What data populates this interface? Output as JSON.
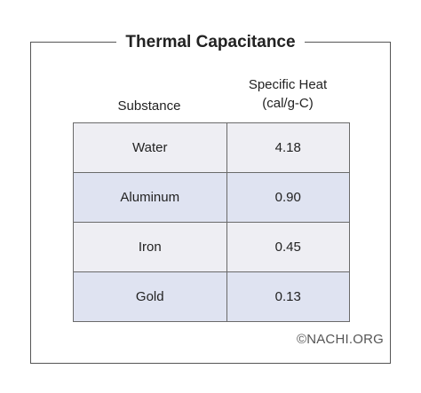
{
  "title": "Thermal Capacitance",
  "headers": {
    "substance": "Substance",
    "specific_heat_line1": "Specific Heat",
    "specific_heat_line2": "(cal/g-C)"
  },
  "rows": [
    {
      "substance": "Water",
      "value": "4.18"
    },
    {
      "substance": "Aluminum",
      "value": "0.90"
    },
    {
      "substance": "Iron",
      "value": "0.45"
    },
    {
      "substance": "Gold",
      "value": "0.13"
    }
  ],
  "credit": "©NACHI.ORG",
  "colors": {
    "row_light": "#eeeef3",
    "row_blue": "#dfe3f1",
    "border": "#6a6a6a"
  }
}
